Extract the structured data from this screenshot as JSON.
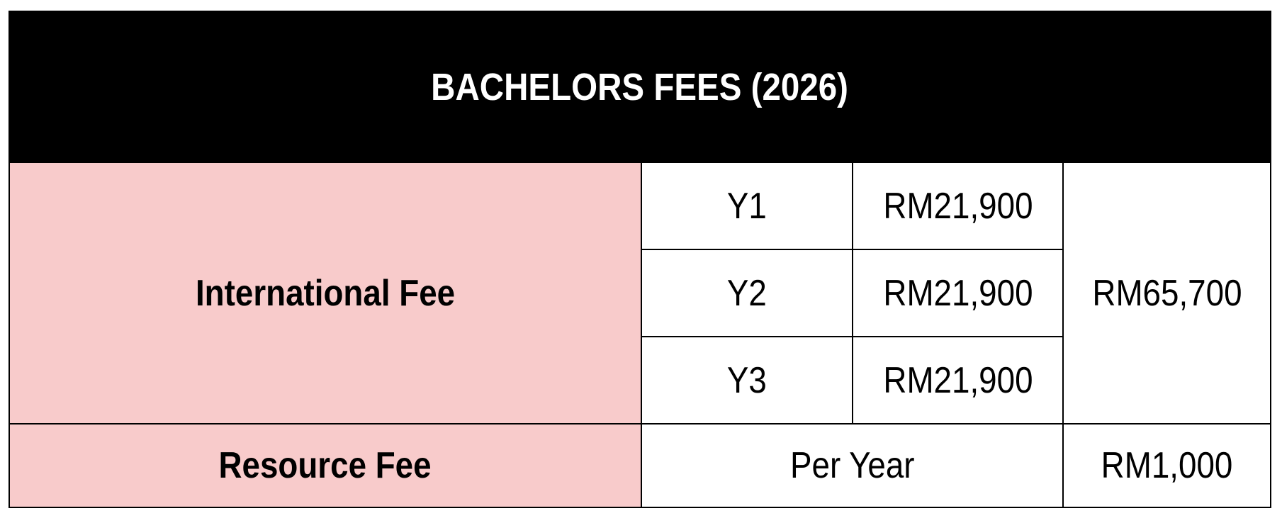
{
  "title": "BACHELORS FEES (2026)",
  "international_fee": {
    "label": "International Fee",
    "years": [
      {
        "year": "Y1",
        "amount": "RM21,900"
      },
      {
        "year": "Y2",
        "amount": "RM21,900"
      },
      {
        "year": "Y3",
        "amount": "RM21,900"
      }
    ],
    "total": "RM65,700"
  },
  "resource_fee": {
    "label": "Resource Fee",
    "period": "Per Year",
    "amount": "RM1,000"
  },
  "colors": {
    "header_bg": "#000000",
    "label_bg": "#f8cbcb"
  }
}
